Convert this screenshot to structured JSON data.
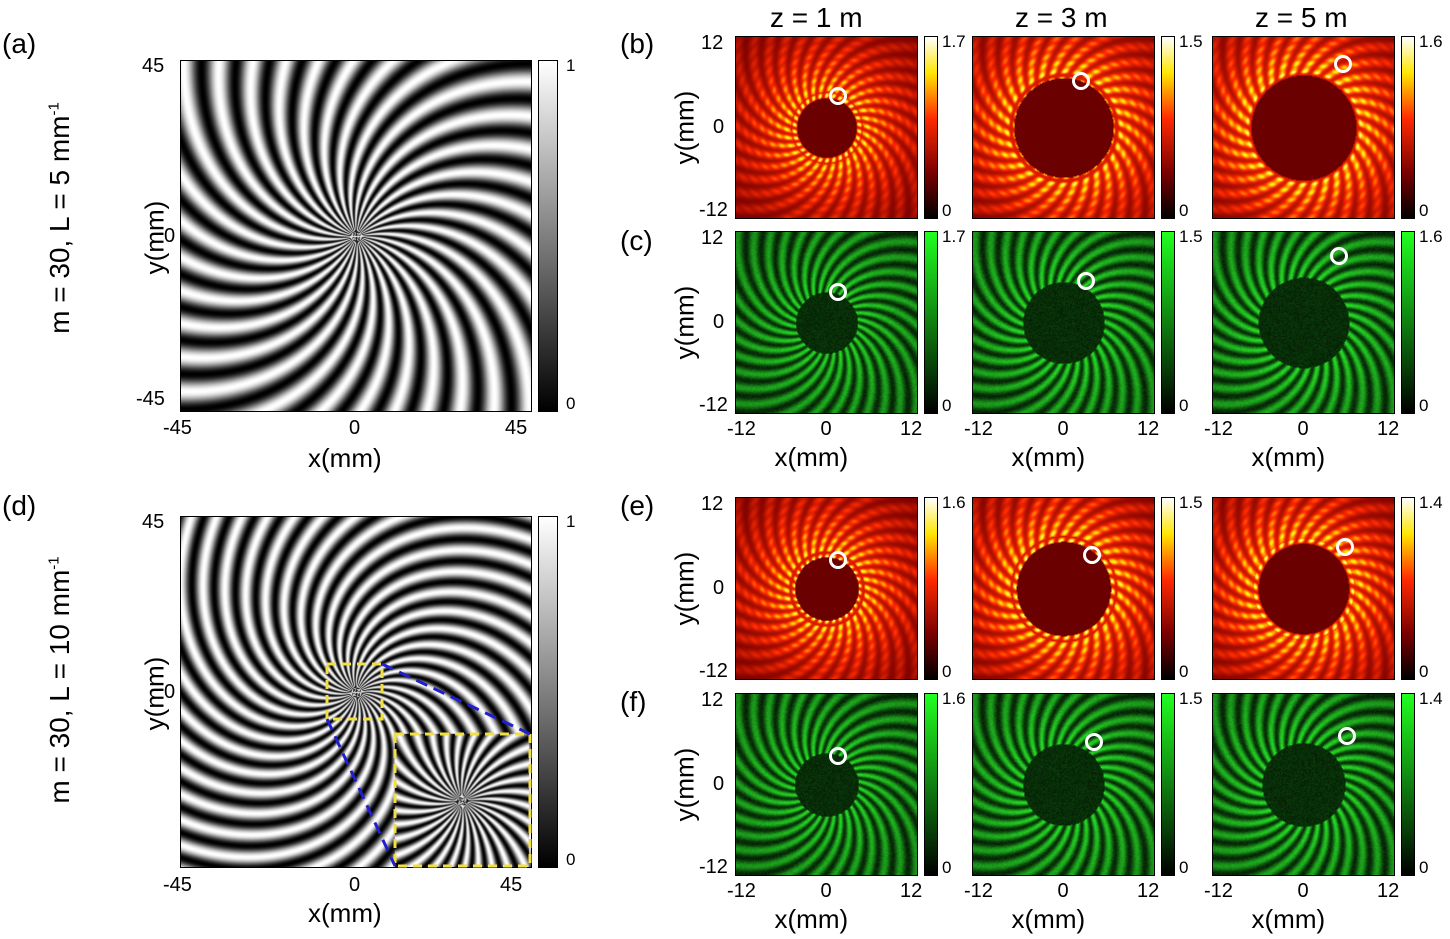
{
  "panels": {
    "a": {
      "label": "(a)"
    },
    "b": {
      "label": "(b)"
    },
    "c": {
      "label": "(c)"
    },
    "d": {
      "label": "(d)"
    },
    "e": {
      "label": "(e)"
    },
    "f": {
      "label": "(f)"
    }
  },
  "row_labels": {
    "top": {
      "text": "m = 30, L = 5 mm",
      "sup": "-1"
    },
    "bottom": {
      "text": "m = 30, L = 10 mm",
      "sup": "-1"
    }
  },
  "column_titles": [
    "z = 1 m",
    "z = 3 m",
    "z = 5 m"
  ],
  "axes": {
    "xlabel": "x(mm)",
    "ylabel": "y(mm)",
    "large_ticks": [
      "-45",
      "0",
      "45"
    ],
    "small_ticks": [
      "-12",
      "0",
      "12"
    ]
  },
  "colorbars": {
    "gray": {
      "max": "1",
      "min": "0"
    },
    "b": [
      "1.7",
      "1.5",
      "1.6"
    ],
    "c": [
      "1.7",
      "1.5",
      "1.6"
    ],
    "e": [
      "1.6",
      "1.5",
      "1.4"
    ],
    "f": [
      "1.6",
      "1.5",
      "1.4"
    ],
    "min": "0"
  },
  "colors": {
    "red_map": [
      "#000000",
      "#7a0000",
      "#ff2a00",
      "#ffe600",
      "#ffffff"
    ],
    "green_map": [
      "#000000",
      "#20ff20"
    ],
    "zoom_box": "#f0e040",
    "zoom_lines": "#1f1fcf"
  }
}
